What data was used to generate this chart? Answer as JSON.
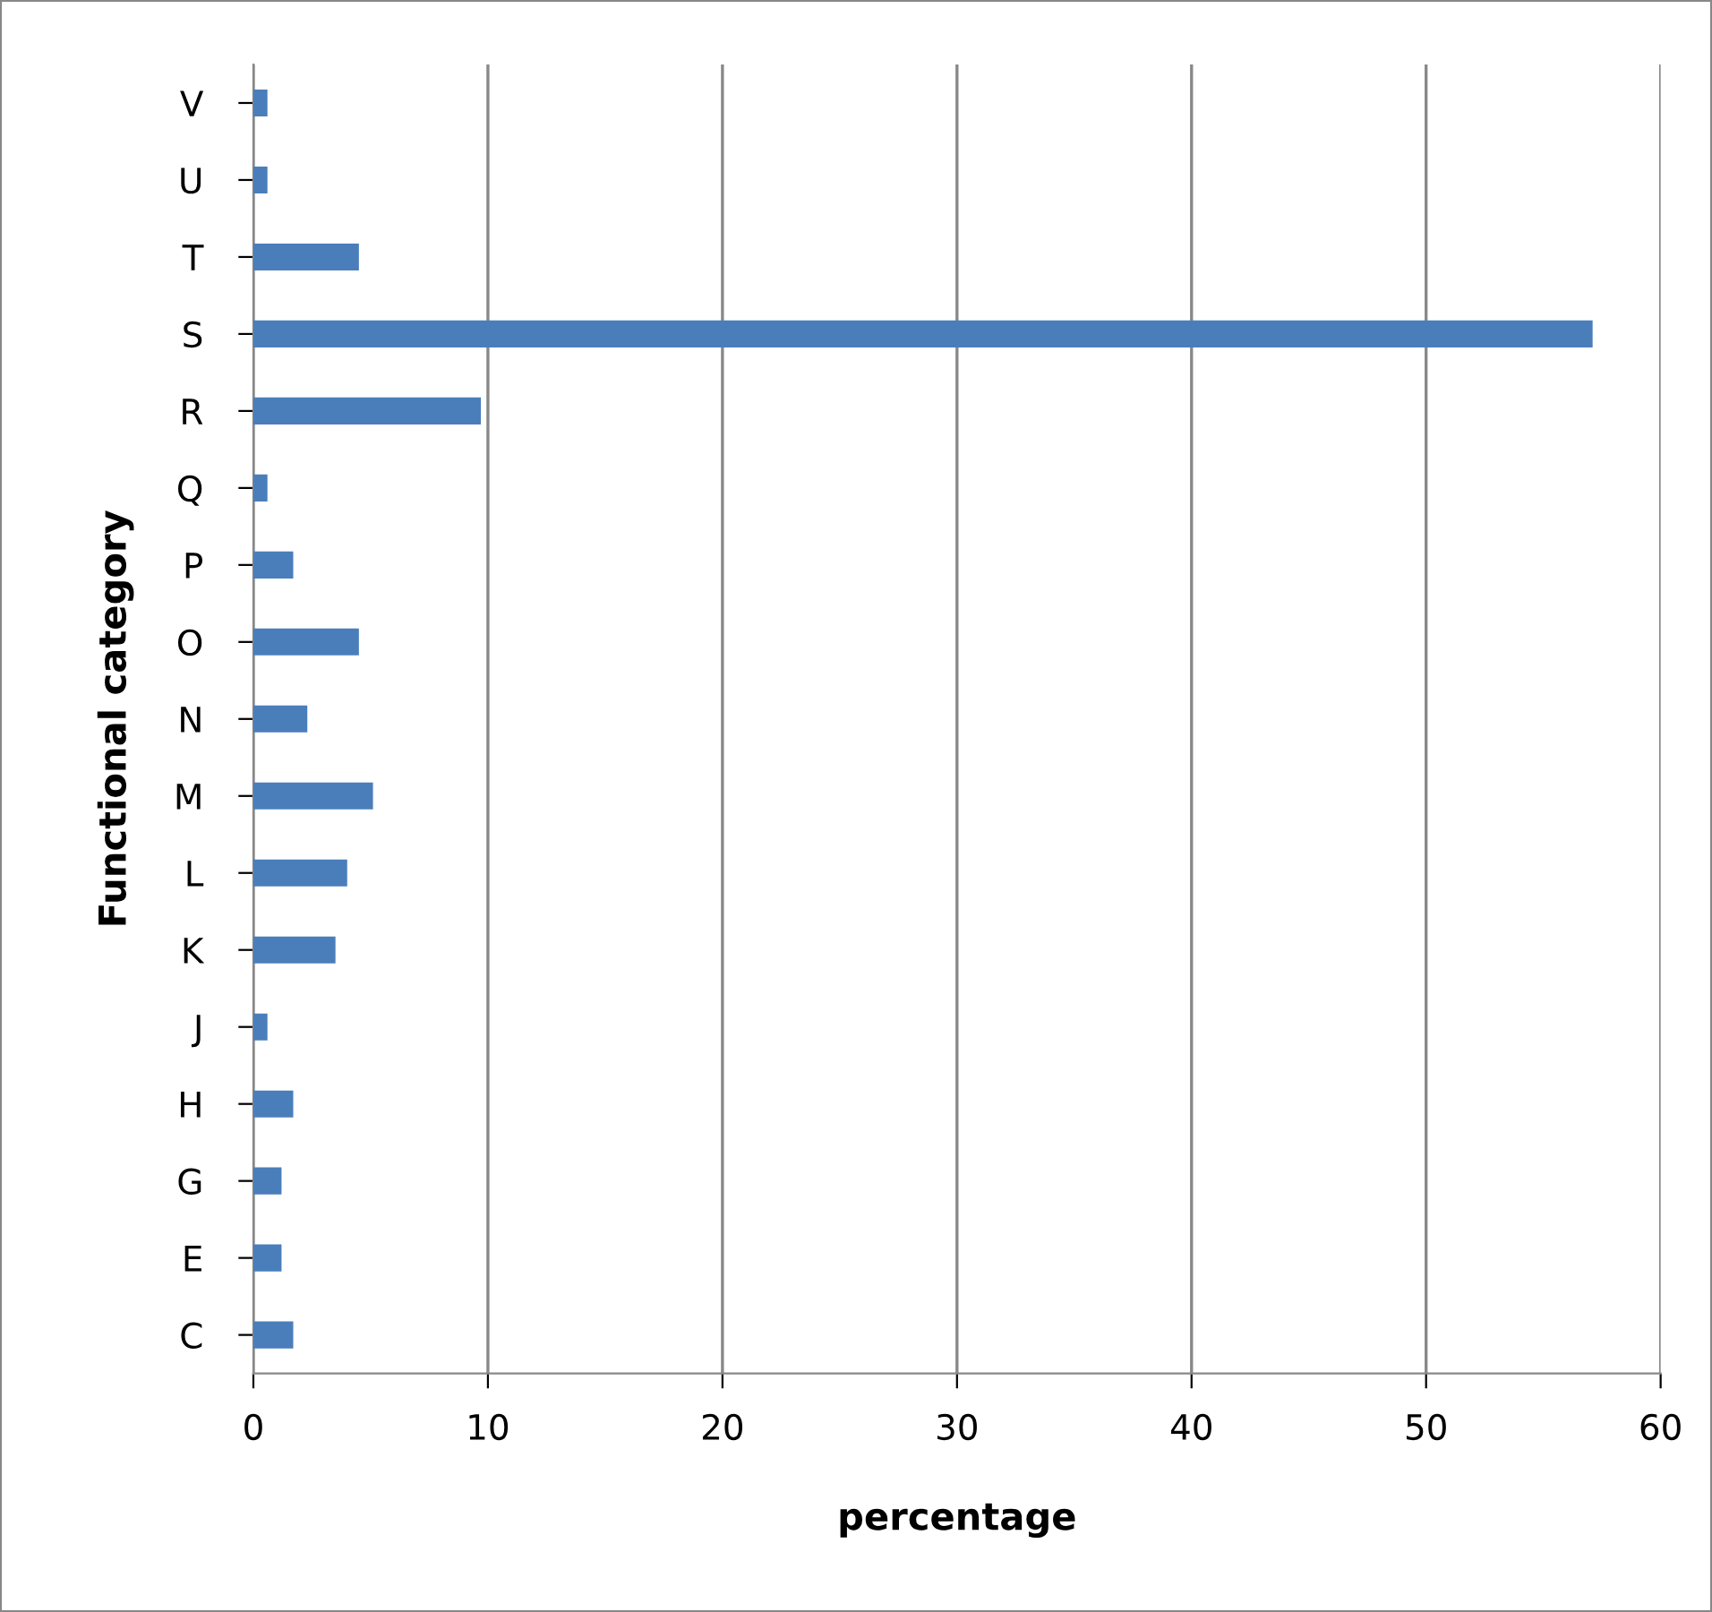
{
  "chart_data": {
    "type": "bar",
    "orientation": "horizontal",
    "xlabel": "percentage",
    "ylabel": "Functional category",
    "categories": [
      "V",
      "U",
      "T",
      "S",
      "R",
      "Q",
      "P",
      "O",
      "N",
      "M",
      "L",
      "K",
      "J",
      "H",
      "G",
      "E",
      "C"
    ],
    "values": [
      0.6,
      0.6,
      4.5,
      57.1,
      9.7,
      0.6,
      1.7,
      4.5,
      2.3,
      5.1,
      4.0,
      3.5,
      0.6,
      1.7,
      1.2,
      1.2,
      1.7
    ],
    "color": "#4a7ebb",
    "xlim": [
      0,
      60
    ],
    "xticks": [
      0,
      10,
      20,
      30,
      40,
      50,
      60
    ],
    "grid": "x"
  }
}
